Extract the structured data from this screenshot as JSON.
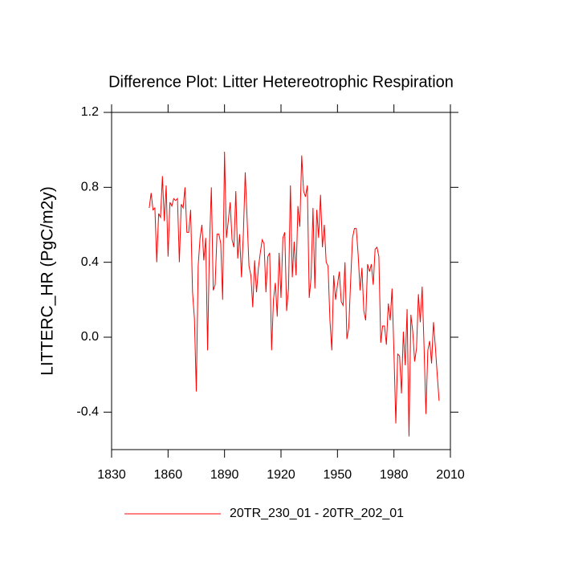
{
  "chart_data": {
    "type": "line",
    "title": "Difference Plot: Litter Hetereotrophic Respiration",
    "y_label": "LITTERC_HR  (PgC/m2y)",
    "x": [
      1850,
      1851,
      1852,
      1853,
      1854,
      1855,
      1856,
      1857,
      1858,
      1859,
      1860,
      1861,
      1862,
      1863,
      1864,
      1865,
      1866,
      1867,
      1868,
      1869,
      1870,
      1871,
      1872,
      1873,
      1874,
      1875,
      1876,
      1877,
      1878,
      1879,
      1880,
      1881,
      1882,
      1883,
      1884,
      1885,
      1886,
      1887,
      1888,
      1889,
      1890,
      1891,
      1892,
      1893,
      1894,
      1895,
      1896,
      1897,
      1898,
      1899,
      1900,
      1901,
      1902,
      1903,
      1904,
      1905,
      1906,
      1907,
      1908,
      1909,
      1910,
      1911,
      1912,
      1913,
      1914,
      1915,
      1916,
      1917,
      1918,
      1919,
      1920,
      1921,
      1922,
      1923,
      1924,
      1925,
      1926,
      1927,
      1928,
      1929,
      1930,
      1931,
      1932,
      1933,
      1934,
      1935,
      1936,
      1937,
      1938,
      1939,
      1940,
      1941,
      1942,
      1943,
      1944,
      1945,
      1946,
      1947,
      1948,
      1949,
      1950,
      1951,
      1952,
      1953,
      1954,
      1955,
      1956,
      1957,
      1958,
      1959,
      1960,
      1961,
      1962,
      1963,
      1964,
      1965,
      1966,
      1967,
      1968,
      1969,
      1970,
      1971,
      1972,
      1973,
      1974,
      1975,
      1976,
      1977,
      1978,
      1979,
      1980,
      1981,
      1982,
      1983,
      1984,
      1985,
      1986,
      1987,
      1988,
      1989,
      1990,
      1991,
      1992,
      1993,
      1994,
      1995,
      1996,
      1997,
      1998,
      1999,
      2000,
      2001,
      2002,
      2003,
      2004
    ],
    "series": [
      {
        "name": "20TR_230_01 - 20TR_202_01",
        "color": "#ff0000",
        "values": [
          0.69,
          0.77,
          0.68,
          0.69,
          0.4,
          0.66,
          0.64,
          0.86,
          0.62,
          0.81,
          0.43,
          0.72,
          0.7,
          0.74,
          0.73,
          0.74,
          0.4,
          0.71,
          0.69,
          0.8,
          0.56,
          0.56,
          0.68,
          0.24,
          0.1,
          -0.29,
          0.38,
          0.53,
          0.6,
          0.41,
          0.53,
          -0.07,
          0.49,
          0.8,
          0.25,
          0.28,
          0.55,
          0.55,
          0.5,
          0.2,
          0.99,
          0.53,
          0.62,
          0.72,
          0.52,
          0.48,
          0.78,
          0.42,
          0.55,
          0.32,
          0.55,
          0.88,
          0.63,
          0.38,
          0.33,
          0.16,
          0.41,
          0.24,
          0.37,
          0.45,
          0.52,
          0.5,
          0.24,
          0.43,
          0.45,
          -0.07,
          0.2,
          0.29,
          0.11,
          0.45,
          0.21,
          0.53,
          0.56,
          0.14,
          0.26,
          0.81,
          0.32,
          0.51,
          0.33,
          0.7,
          0.59,
          0.97,
          0.78,
          0.75,
          0.81,
          0.21,
          0.32,
          0.69,
          0.26,
          0.68,
          0.53,
          0.76,
          0.48,
          0.6,
          0.4,
          0.38,
          0.09,
          -0.07,
          0.33,
          0.2,
          0.28,
          0.35,
          0.19,
          0.17,
          0.4,
          -0.01,
          0.05,
          0.3,
          0.53,
          0.58,
          0.58,
          0.44,
          0.25,
          0.37,
          0.14,
          0.09,
          0.39,
          0.35,
          0.39,
          0.28,
          0.47,
          0.48,
          0.43,
          -0.03,
          0.06,
          0.06,
          -0.04,
          0.18,
          0.09,
          0.26,
          -0.08,
          -0.46,
          -0.09,
          -0.1,
          -0.3,
          0.03,
          -0.15,
          0.15,
          -0.53,
          0.12,
          0.03,
          -0.13,
          -0.06,
          0.23,
          0.08,
          0.27,
          -0.05,
          -0.41,
          -0.07,
          -0.02,
          -0.14,
          0.08,
          -0.05,
          -0.2,
          -0.34
        ]
      }
    ],
    "xlim": [
      1830,
      2010
    ],
    "xticks": [
      1830,
      1860,
      1890,
      1920,
      1950,
      1980,
      2010
    ],
    "ylim": [
      -0.6,
      1.2
    ],
    "yticks": [
      -0.4,
      {
        "value": 0,
        "label": "0.0"
      },
      0.4,
      0.8,
      1.2
    ]
  }
}
